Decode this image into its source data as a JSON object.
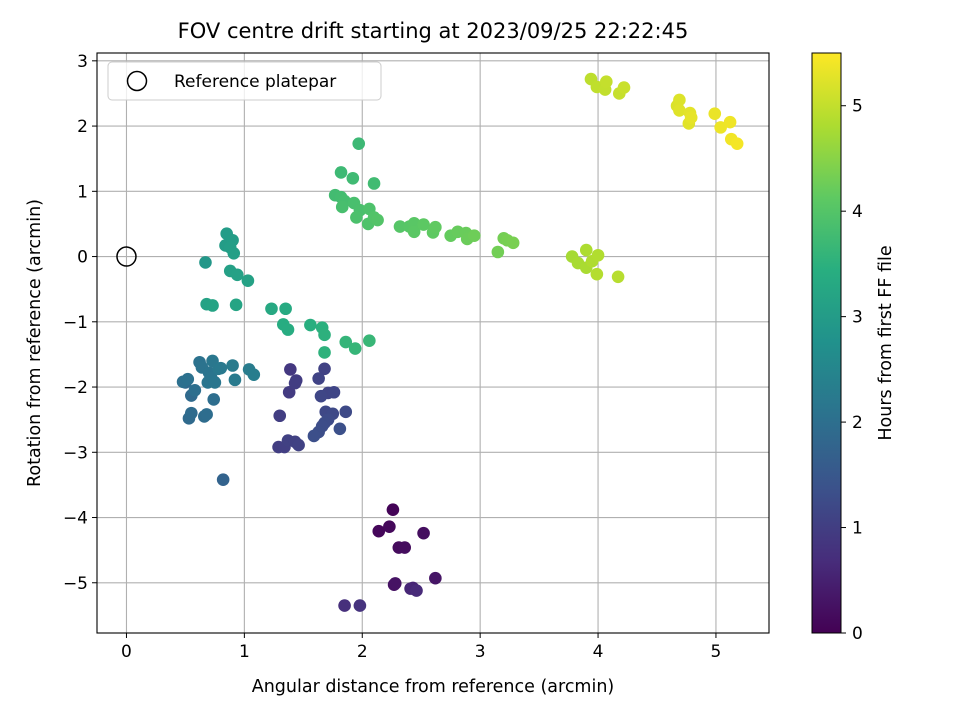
{
  "chart_data": {
    "type": "scatter",
    "title": "FOV centre drift starting at 2023/09/25 22:22:45",
    "xlabel": "Angular distance from reference (arcmin)",
    "ylabel": "Rotation from reference (arcmin)",
    "xlim": [
      -0.25,
      5.45
    ],
    "ylim": [
      -5.77,
      3.12
    ],
    "xticks": [
      0,
      1,
      2,
      3,
      4,
      5
    ],
    "yticks": [
      -5,
      -4,
      -3,
      -2,
      -1,
      0,
      1,
      2,
      3
    ],
    "grid": true,
    "legend": {
      "placement": "top-left",
      "entries": [
        "Reference platepar"
      ]
    },
    "reference_point": {
      "x": 0,
      "y": 0
    },
    "colorbar": {
      "label": "Hours from first FF file",
      "range": [
        0,
        5.5
      ],
      "ticks": [
        0,
        1,
        2,
        3,
        4,
        5
      ],
      "colormap": "viridis"
    },
    "points": [
      {
        "x": 2.26,
        "y": -3.88,
        "c": 0.05
      },
      {
        "x": 2.14,
        "y": -4.21,
        "c": 0.1
      },
      {
        "x": 2.23,
        "y": -4.14,
        "c": 0.12
      },
      {
        "x": 2.31,
        "y": -4.46,
        "c": 0.15
      },
      {
        "x": 2.36,
        "y": -4.46,
        "c": 0.18
      },
      {
        "x": 2.52,
        "y": -4.24,
        "c": 0.2
      },
      {
        "x": 2.27,
        "y": -5.03,
        "c": 0.25
      },
      {
        "x": 2.28,
        "y": -5.01,
        "c": 0.28
      },
      {
        "x": 2.62,
        "y": -4.93,
        "c": 0.32
      },
      {
        "x": 2.43,
        "y": -5.08,
        "c": 0.55
      },
      {
        "x": 2.41,
        "y": -5.09,
        "c": 0.6
      },
      {
        "x": 2.46,
        "y": -5.12,
        "c": 0.65
      },
      {
        "x": 1.85,
        "y": -5.35,
        "c": 0.75
      },
      {
        "x": 1.98,
        "y": -5.35,
        "c": 0.8
      },
      {
        "x": 1.39,
        "y": -1.73,
        "c": 0.9
      },
      {
        "x": 1.38,
        "y": -2.08,
        "c": 0.95
      },
      {
        "x": 1.44,
        "y": -1.9,
        "c": 0.95
      },
      {
        "x": 1.43,
        "y": -1.94,
        "c": 0.98
      },
      {
        "x": 1.3,
        "y": -2.44,
        "c": 1.0
      },
      {
        "x": 1.29,
        "y": -2.92,
        "c": 1.0
      },
      {
        "x": 1.34,
        "y": -2.92,
        "c": 1.02
      },
      {
        "x": 1.37,
        "y": -2.82,
        "c": 1.05
      },
      {
        "x": 1.43,
        "y": -2.84,
        "c": 1.05
      },
      {
        "x": 1.46,
        "y": -2.89,
        "c": 1.08
      },
      {
        "x": 1.68,
        "y": -1.72,
        "c": 1.08
      },
      {
        "x": 1.63,
        "y": -1.87,
        "c": 1.1
      },
      {
        "x": 1.71,
        "y": -2.09,
        "c": 1.12
      },
      {
        "x": 1.76,
        "y": -2.08,
        "c": 1.14
      },
      {
        "x": 1.65,
        "y": -2.14,
        "c": 1.16
      },
      {
        "x": 1.69,
        "y": -2.38,
        "c": 1.18
      },
      {
        "x": 1.75,
        "y": -2.41,
        "c": 1.2
      },
      {
        "x": 1.86,
        "y": -2.38,
        "c": 1.22
      },
      {
        "x": 1.71,
        "y": -2.5,
        "c": 1.24
      },
      {
        "x": 1.68,
        "y": -2.55,
        "c": 1.26
      },
      {
        "x": 1.66,
        "y": -2.6,
        "c": 1.28
      },
      {
        "x": 1.63,
        "y": -2.69,
        "c": 1.3
      },
      {
        "x": 1.59,
        "y": -2.75,
        "c": 1.32
      },
      {
        "x": 1.81,
        "y": -2.64,
        "c": 1.34
      },
      {
        "x": 0.82,
        "y": -3.42,
        "c": 1.75
      },
      {
        "x": 0.5,
        "y": -1.93,
        "c": 1.85
      },
      {
        "x": 0.55,
        "y": -2.13,
        "c": 1.88
      },
      {
        "x": 0.53,
        "y": -2.48,
        "c": 1.9
      },
      {
        "x": 0.55,
        "y": -2.4,
        "c": 1.92
      },
      {
        "x": 0.66,
        "y": -2.45,
        "c": 1.94
      },
      {
        "x": 0.68,
        "y": -2.42,
        "c": 1.96
      },
      {
        "x": 0.74,
        "y": -2.19,
        "c": 1.98
      },
      {
        "x": 0.58,
        "y": -2.05,
        "c": 2.0
      },
      {
        "x": 0.48,
        "y": -1.92,
        "c": 2.02
      },
      {
        "x": 0.52,
        "y": -1.88,
        "c": 2.04
      },
      {
        "x": 0.62,
        "y": -1.62,
        "c": 2.06
      },
      {
        "x": 0.64,
        "y": -1.7,
        "c": 2.08
      },
      {
        "x": 0.7,
        "y": -1.78,
        "c": 2.1
      },
      {
        "x": 0.72,
        "y": -1.86,
        "c": 2.12
      },
      {
        "x": 0.69,
        "y": -1.93,
        "c": 2.14
      },
      {
        "x": 0.75,
        "y": -1.93,
        "c": 2.16
      },
      {
        "x": 0.73,
        "y": -1.6,
        "c": 2.18
      },
      {
        "x": 0.78,
        "y": -1.72,
        "c": 2.2
      },
      {
        "x": 0.8,
        "y": -1.71,
        "c": 2.22
      },
      {
        "x": 0.92,
        "y": -1.89,
        "c": 2.24
      },
      {
        "x": 0.9,
        "y": -1.67,
        "c": 2.26
      },
      {
        "x": 1.04,
        "y": -1.73,
        "c": 2.28
      },
      {
        "x": 1.08,
        "y": -1.81,
        "c": 2.3
      },
      {
        "x": 0.67,
        "y": -0.09,
        "c": 2.9
      },
      {
        "x": 0.85,
        "y": 0.35,
        "c": 3.0
      },
      {
        "x": 0.84,
        "y": 0.17,
        "c": 3.02
      },
      {
        "x": 0.9,
        "y": 0.25,
        "c": 3.04
      },
      {
        "x": 0.88,
        "y": 0.14,
        "c": 3.06
      },
      {
        "x": 0.91,
        "y": 0.05,
        "c": 3.08
      },
      {
        "x": 0.88,
        "y": -0.22,
        "c": 3.1
      },
      {
        "x": 0.94,
        "y": -0.28,
        "c": 3.12
      },
      {
        "x": 1.03,
        "y": -0.37,
        "c": 3.14
      },
      {
        "x": 0.68,
        "y": -0.73,
        "c": 3.16
      },
      {
        "x": 0.73,
        "y": -0.75,
        "c": 3.18
      },
      {
        "x": 0.93,
        "y": -0.74,
        "c": 3.2
      },
      {
        "x": 1.23,
        "y": -0.8,
        "c": 3.3
      },
      {
        "x": 1.35,
        "y": -0.8,
        "c": 3.35
      },
      {
        "x": 1.33,
        "y": -1.04,
        "c": 3.38
      },
      {
        "x": 1.37,
        "y": -1.12,
        "c": 3.4
      },
      {
        "x": 1.56,
        "y": -1.05,
        "c": 3.45
      },
      {
        "x": 1.66,
        "y": -1.09,
        "c": 3.48
      },
      {
        "x": 1.68,
        "y": -1.2,
        "c": 3.5
      },
      {
        "x": 1.68,
        "y": -1.47,
        "c": 3.52
      },
      {
        "x": 1.86,
        "y": -1.31,
        "c": 3.6
      },
      {
        "x": 1.94,
        "y": -1.41,
        "c": 3.62
      },
      {
        "x": 2.06,
        "y": -1.29,
        "c": 3.65
      },
      {
        "x": 1.97,
        "y": 1.73,
        "c": 3.7
      },
      {
        "x": 1.82,
        "y": 1.29,
        "c": 3.72
      },
      {
        "x": 1.92,
        "y": 1.2,
        "c": 3.74
      },
      {
        "x": 2.1,
        "y": 1.12,
        "c": 3.76
      },
      {
        "x": 1.77,
        "y": 0.94,
        "c": 3.78
      },
      {
        "x": 1.82,
        "y": 0.91,
        "c": 3.8
      },
      {
        "x": 1.85,
        "y": 0.85,
        "c": 3.82
      },
      {
        "x": 1.83,
        "y": 0.76,
        "c": 3.84
      },
      {
        "x": 1.93,
        "y": 0.82,
        "c": 3.86
      },
      {
        "x": 1.98,
        "y": 0.71,
        "c": 3.88
      },
      {
        "x": 1.95,
        "y": 0.6,
        "c": 3.9
      },
      {
        "x": 2.06,
        "y": 0.73,
        "c": 3.92
      },
      {
        "x": 2.05,
        "y": 0.5,
        "c": 3.94
      },
      {
        "x": 2.1,
        "y": 0.6,
        "c": 3.96
      },
      {
        "x": 2.13,
        "y": 0.56,
        "c": 3.98
      },
      {
        "x": 2.32,
        "y": 0.46,
        "c": 4.02
      },
      {
        "x": 2.4,
        "y": 0.46,
        "c": 4.04
      },
      {
        "x": 2.44,
        "y": 0.51,
        "c": 4.06
      },
      {
        "x": 2.44,
        "y": 0.38,
        "c": 4.08
      },
      {
        "x": 2.52,
        "y": 0.49,
        "c": 4.1
      },
      {
        "x": 2.6,
        "y": 0.37,
        "c": 4.12
      },
      {
        "x": 2.62,
        "y": 0.45,
        "c": 4.14
      },
      {
        "x": 2.75,
        "y": 0.32,
        "c": 4.18
      },
      {
        "x": 2.81,
        "y": 0.38,
        "c": 4.2
      },
      {
        "x": 2.88,
        "y": 0.36,
        "c": 4.22
      },
      {
        "x": 2.89,
        "y": 0.27,
        "c": 4.24
      },
      {
        "x": 2.95,
        "y": 0.32,
        "c": 4.26
      },
      {
        "x": 3.15,
        "y": 0.07,
        "c": 4.3
      },
      {
        "x": 3.2,
        "y": 0.28,
        "c": 4.32
      },
      {
        "x": 3.23,
        "y": 0.25,
        "c": 4.34
      },
      {
        "x": 3.28,
        "y": 0.21,
        "c": 4.36
      },
      {
        "x": 3.78,
        "y": 0.0,
        "c": 4.75
      },
      {
        "x": 3.83,
        "y": -0.1,
        "c": 4.77
      },
      {
        "x": 3.9,
        "y": -0.17,
        "c": 4.79
      },
      {
        "x": 3.9,
        "y": 0.1,
        "c": 4.81
      },
      {
        "x": 3.95,
        "y": -0.07,
        "c": 4.83
      },
      {
        "x": 4.0,
        "y": 0.02,
        "c": 4.85
      },
      {
        "x": 3.99,
        "y": -0.27,
        "c": 4.87
      },
      {
        "x": 4.17,
        "y": -0.31,
        "c": 4.9
      },
      {
        "x": 3.94,
        "y": 2.72,
        "c": 4.95
      },
      {
        "x": 3.99,
        "y": 2.6,
        "c": 4.97
      },
      {
        "x": 4.06,
        "y": 2.56,
        "c": 4.99
      },
      {
        "x": 4.07,
        "y": 2.68,
        "c": 5.01
      },
      {
        "x": 4.18,
        "y": 2.5,
        "c": 5.03
      },
      {
        "x": 4.22,
        "y": 2.59,
        "c": 5.05
      },
      {
        "x": 4.67,
        "y": 2.31,
        "c": 5.2
      },
      {
        "x": 4.69,
        "y": 2.4,
        "c": 5.22
      },
      {
        "x": 4.69,
        "y": 2.24,
        "c": 5.24
      },
      {
        "x": 4.77,
        "y": 2.04,
        "c": 5.26
      },
      {
        "x": 4.78,
        "y": 2.2,
        "c": 5.28
      },
      {
        "x": 4.79,
        "y": 2.13,
        "c": 5.3
      },
      {
        "x": 4.99,
        "y": 2.19,
        "c": 5.34
      },
      {
        "x": 5.04,
        "y": 1.98,
        "c": 5.36
      },
      {
        "x": 5.12,
        "y": 2.06,
        "c": 5.38
      },
      {
        "x": 5.13,
        "y": 1.8,
        "c": 5.4
      },
      {
        "x": 5.18,
        "y": 1.73,
        "c": 5.42
      }
    ]
  }
}
